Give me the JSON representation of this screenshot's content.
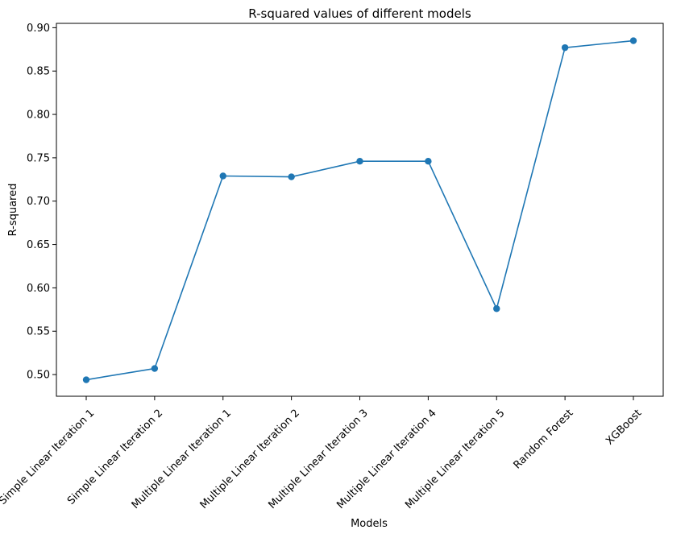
{
  "chart_data": {
    "type": "line",
    "title": "R-squared values of different models",
    "xlabel": "Models",
    "ylabel": "R-squared",
    "categories": [
      "Simple Linear Iteration 1",
      "Simple Linear Iteration 2",
      "Multiple Linear Iteration 1",
      "Multiple Linear Iteration 2",
      "Multiple Linear Iteration 3",
      "Multiple Linear Iteration 4",
      "Multiple Linear Iteration 5",
      "Random Forest",
      "XGBoost"
    ],
    "series": [
      {
        "values": [
          0.494,
          0.507,
          0.729,
          0.728,
          0.746,
          0.746,
          0.576,
          0.877,
          0.885
        ],
        "color": "#1f77b4",
        "marker": "circle"
      }
    ],
    "ylim": [
      0.475,
      0.905
    ],
    "yticks": [
      "0.50",
      "0.55",
      "0.60",
      "0.65",
      "0.70",
      "0.75",
      "0.80",
      "0.85",
      "0.90"
    ],
    "grid": false,
    "legend": "none",
    "x_tick_rotation_deg": 45
  }
}
